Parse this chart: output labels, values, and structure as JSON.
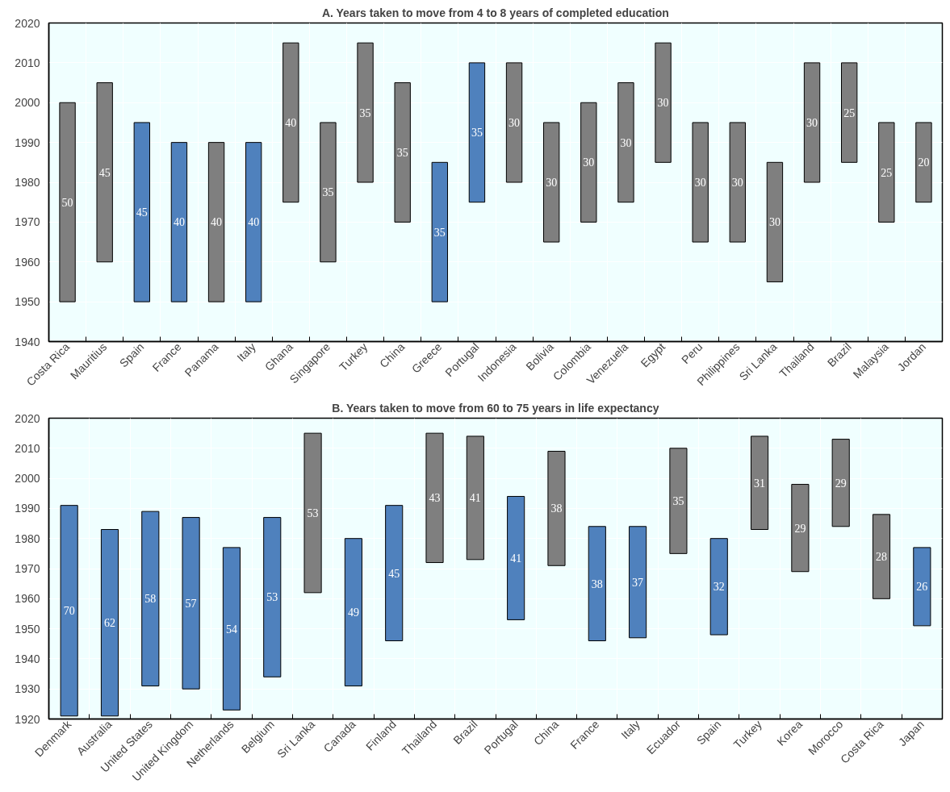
{
  "chart_data": [
    {
      "type": "bar",
      "title": "A. Years taken to move from 4 to 8 years of completed education",
      "categories": [
        "Costa Rica",
        "Mauritius",
        "Spain",
        "France",
        "Panama",
        "Italy",
        "Ghana",
        "Singapore",
        "Turkey",
        "China",
        "Greece",
        "Portugal",
        "Indonesia",
        "Bolivia",
        "Colombia",
        "Venezuela",
        "Egypt",
        "Peru",
        "Philippines",
        "Sri Lanka",
        "Thailand",
        "Brazil",
        "Malaysia",
        "Jordan"
      ],
      "base": [
        1950,
        1960,
        1950,
        1950,
        1950,
        1950,
        1975,
        1960,
        1980,
        1970,
        1950,
        1975,
        1980,
        1965,
        1970,
        1975,
        1985,
        1965,
        1965,
        1955,
        1980,
        1985,
        1970,
        1975
      ],
      "values": [
        50,
        45,
        45,
        40,
        40,
        40,
        40,
        35,
        35,
        35,
        35,
        35,
        30,
        30,
        30,
        30,
        30,
        30,
        30,
        30,
        30,
        25,
        25,
        20
      ],
      "colors": [
        "#7f7f7f",
        "#7f7f7f",
        "#4f81bd",
        "#4f81bd",
        "#7f7f7f",
        "#4f81bd",
        "#7f7f7f",
        "#7f7f7f",
        "#7f7f7f",
        "#7f7f7f",
        "#4f81bd",
        "#4f81bd",
        "#7f7f7f",
        "#7f7f7f",
        "#7f7f7f",
        "#7f7f7f",
        "#7f7f7f",
        "#7f7f7f",
        "#7f7f7f",
        "#7f7f7f",
        "#7f7f7f",
        "#7f7f7f",
        "#7f7f7f",
        "#7f7f7f"
      ],
      "ylim": [
        1940,
        2020
      ],
      "yticks": [
        1940,
        1950,
        1960,
        1970,
        1980,
        1990,
        2000,
        2010,
        2020
      ],
      "grid": true,
      "data_labels": true
    },
    {
      "type": "bar",
      "title": "B. Years taken to move from 60 to 75 years in life expectancy",
      "categories": [
        "Denmark",
        "Australia",
        "United States",
        "United Kingdom",
        "Netherlands",
        "Belgium",
        "Sri Lanka",
        "Canada",
        "Finland",
        "Thailand",
        "Brazil",
        "Portugal",
        "China",
        "France",
        "Italy",
        "Ecuador",
        "Spain",
        "Turkey",
        "Korea",
        "Morocco",
        "Costa Rica",
        "Japan"
      ],
      "base": [
        1921,
        1921,
        1931,
        1930,
        1923,
        1934,
        1962,
        1931,
        1946,
        1972,
        1973,
        1953,
        1971,
        1946,
        1947,
        1975,
        1948,
        1983,
        1969,
        1984,
        1960,
        1951
      ],
      "values": [
        70,
        62,
        58,
        57,
        54,
        53,
        53,
        49,
        45,
        43,
        41,
        41,
        38,
        38,
        37,
        35,
        32,
        31,
        29,
        29,
        28,
        26
      ],
      "colors": [
        "#4f81bd",
        "#4f81bd",
        "#4f81bd",
        "#4f81bd",
        "#4f81bd",
        "#4f81bd",
        "#7f7f7f",
        "#4f81bd",
        "#4f81bd",
        "#7f7f7f",
        "#7f7f7f",
        "#4f81bd",
        "#7f7f7f",
        "#4f81bd",
        "#4f81bd",
        "#7f7f7f",
        "#4f81bd",
        "#7f7f7f",
        "#7f7f7f",
        "#7f7f7f",
        "#7f7f7f",
        "#4f81bd"
      ],
      "ylim": [
        1920,
        2020
      ],
      "yticks": [
        1920,
        1930,
        1940,
        1950,
        1960,
        1970,
        1980,
        1990,
        2000,
        2010,
        2020
      ],
      "grid": true,
      "data_labels": true
    }
  ]
}
